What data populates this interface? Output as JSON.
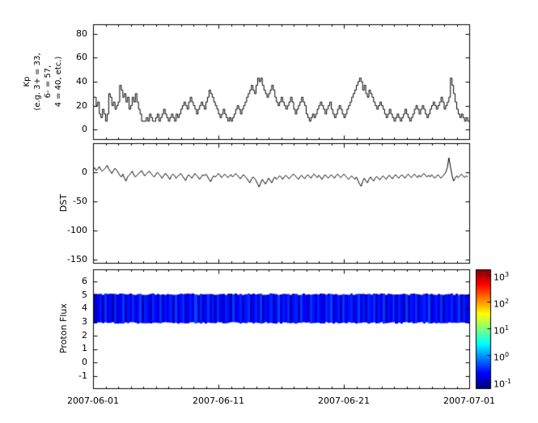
{
  "figure": {
    "background": "#ffffff",
    "axis_color": "#000000",
    "line_color": "#000000"
  },
  "x_axis": {
    "tick_labels": [
      "2007-06-01",
      "2007-06-11",
      "2007-06-21",
      "2007-07-01"
    ],
    "tick_days": [
      0,
      10,
      20,
      30
    ],
    "range_days": [
      0,
      30
    ],
    "minor_tick_step_days": 1
  },
  "colorbar": {
    "colormap": "jet",
    "log_range": [
      -1.25,
      3.2
    ],
    "ticks": [
      {
        "base": "10",
        "exp": "3"
      },
      {
        "base": "10",
        "exp": "2"
      },
      {
        "base": "10",
        "exp": "1"
      },
      {
        "base": "10",
        "exp": "0"
      },
      {
        "base": "10",
        "exp": "-1"
      }
    ]
  },
  "chart_data": [
    {
      "type": "line",
      "name": "kp-index",
      "style": "step",
      "ylabel_lines": [
        "Kp",
        "(e.g. 3+ = 33,",
        "6- = 57,",
        "4 = 40, etc.)"
      ],
      "yticks": [
        80,
        60,
        40,
        20,
        0
      ],
      "ylim": [
        -8,
        88
      ],
      "x_range_days": [
        0,
        30
      ],
      "values": [
        27,
        27,
        20,
        23,
        13,
        10,
        17,
        13,
        7,
        13,
        30,
        27,
        20,
        23,
        17,
        20,
        23,
        37,
        33,
        27,
        30,
        23,
        27,
        17,
        20,
        27,
        23,
        30,
        23,
        17,
        13,
        7,
        7,
        7,
        10,
        7,
        13,
        10,
        7,
        7,
        10,
        13,
        7,
        10,
        13,
        17,
        13,
        10,
        7,
        10,
        13,
        10,
        7,
        13,
        10,
        13,
        17,
        20,
        23,
        20,
        17,
        23,
        27,
        23,
        20,
        17,
        13,
        17,
        20,
        23,
        20,
        17,
        23,
        27,
        33,
        30,
        27,
        23,
        20,
        17,
        13,
        10,
        13,
        17,
        13,
        10,
        7,
        10,
        7,
        10,
        13,
        17,
        20,
        17,
        13,
        17,
        20,
        23,
        27,
        30,
        33,
        37,
        33,
        30,
        37,
        43,
        40,
        43,
        37,
        33,
        30,
        27,
        30,
        33,
        37,
        33,
        27,
        23,
        20,
        23,
        27,
        23,
        20,
        17,
        20,
        23,
        27,
        23,
        17,
        13,
        17,
        20,
        23,
        27,
        23,
        20,
        13,
        10,
        7,
        10,
        13,
        10,
        13,
        17,
        20,
        23,
        20,
        17,
        13,
        17,
        20,
        23,
        17,
        13,
        10,
        13,
        17,
        20,
        17,
        13,
        10,
        13,
        17,
        20,
        23,
        27,
        30,
        33,
        37,
        40,
        43,
        40,
        33,
        37,
        30,
        27,
        33,
        30,
        27,
        23,
        20,
        17,
        20,
        23,
        20,
        17,
        13,
        10,
        13,
        17,
        13,
        10,
        7,
        10,
        13,
        10,
        7,
        10,
        13,
        17,
        13,
        10,
        7,
        10,
        13,
        17,
        20,
        17,
        13,
        17,
        20,
        17,
        13,
        10,
        13,
        17,
        20,
        23,
        20,
        17,
        20,
        23,
        27,
        23,
        17,
        20,
        23,
        27,
        43,
        37,
        30,
        23,
        17,
        13,
        10,
        13,
        10,
        7,
        10,
        7
      ]
    },
    {
      "type": "line",
      "name": "dst-index",
      "style": "line",
      "ylabel": "DST",
      "yticks": [
        0,
        -50,
        -100,
        -150
      ],
      "ylim": [
        50,
        -155
      ],
      "x_range_days": [
        0,
        30
      ],
      "values": [
        5,
        8,
        3,
        6,
        10,
        4,
        2,
        5,
        8,
        12,
        6,
        2,
        -2,
        3,
        7,
        4,
        0,
        -5,
        -8,
        -3,
        -10,
        -15,
        -8,
        -5,
        -2,
        2,
        -4,
        -8,
        -5,
        -2,
        0,
        3,
        -2,
        -6,
        -3,
        0,
        2,
        -2,
        -5,
        -8,
        -4,
        0,
        -3,
        -6,
        -10,
        -6,
        -2,
        -4,
        -8,
        -12,
        -6,
        -3,
        -6,
        -10,
        -7,
        -4,
        -2,
        -6,
        -10,
        -14,
        -8,
        -4,
        -7,
        -10,
        -6,
        -2,
        -5,
        -8,
        -12,
        -8,
        -4,
        -6,
        -3,
        -7,
        -12,
        -16,
        -10,
        -6,
        -8,
        -5,
        -2,
        -5,
        -9,
        -6,
        -3,
        -6,
        -9,
        -6,
        -4,
        -8,
        -5,
        -2,
        -5,
        -8,
        -11,
        -7,
        -4,
        -7,
        -10,
        -14,
        -18,
        -12,
        -8,
        -10,
        -14,
        -20,
        -25,
        -18,
        -12,
        -16,
        -20,
        -15,
        -10,
        -14,
        -18,
        -12,
        -8,
        -12,
        -9,
        -6,
        -8,
        -12,
        -8,
        -5,
        -8,
        -11,
        -8,
        -5,
        -3,
        -6,
        -9,
        -12,
        -8,
        -5,
        -8,
        -11,
        -7,
        -4,
        -7,
        -10,
        -6,
        -3,
        -6,
        -9,
        -5,
        -8,
        -12,
        -8,
        -4,
        -7,
        -10,
        -7,
        -4,
        -7,
        -10,
        -6,
        -3,
        -6,
        -9,
        -6,
        -3,
        -6,
        -9,
        -12,
        -9,
        -6,
        -9,
        -12,
        -8,
        -14,
        -20,
        -24,
        -16,
        -10,
        -14,
        -18,
        -12,
        -8,
        -12,
        -15,
        -10,
        -7,
        -10,
        -13,
        -9,
        -6,
        -9,
        -12,
        -8,
        -5,
        -8,
        -11,
        -7,
        -4,
        -7,
        -10,
        -7,
        -4,
        -7,
        -10,
        -6,
        -3,
        -6,
        -9,
        -6,
        -3,
        -6,
        -9,
        -5,
        -8,
        -5,
        -2,
        -5,
        -8,
        -5,
        -8,
        -4,
        -7,
        -10,
        -7,
        -4,
        -7,
        -10,
        -7,
        -4,
        0,
        8,
        25,
        10,
        -5,
        -15,
        -10,
        -6,
        -9,
        -6,
        -3,
        -6,
        -9,
        -6,
        -8
      ]
    },
    {
      "type": "heatmap",
      "name": "proton-flux",
      "ylabel": "Proton Flux",
      "yticks": [
        6,
        5,
        4,
        3,
        2,
        1,
        0,
        -1
      ],
      "ylim": [
        -1.9,
        6.9
      ],
      "band": [
        3,
        5
      ],
      "scale": "log10",
      "clim_log": [
        -1.25,
        3.2
      ],
      "colormap": "jet",
      "x_range_days": [
        0,
        30
      ],
      "values": [
        0.12,
        0.18,
        0.25,
        0.1,
        0.32,
        0.15,
        0.22,
        0.09,
        0.28,
        0.14,
        0.19,
        0.35,
        0.11,
        0.24,
        0.16,
        0.3,
        0.13,
        0.21,
        0.38,
        0.1,
        0.26,
        0.17,
        0.12,
        0.29,
        0.2,
        0.15,
        0.33,
        0.11,
        0.23,
        0.18,
        0.27,
        0.1,
        0.36,
        0.14,
        0.22,
        0.31,
        0.12,
        0.19,
        0.25,
        0.16,
        0.4,
        0.13,
        0.28,
        0.11,
        0.21,
        0.34,
        0.15,
        0.24,
        0.1,
        0.3,
        0.18,
        0.12,
        0.26,
        0.22,
        0.09,
        0.37,
        0.16,
        0.2,
        0.28,
        0.13,
        0.24,
        0.32,
        0.11,
        0.19,
        0.27,
        0.15,
        0.35,
        0.1,
        0.23,
        0.17,
        0.29,
        0.12,
        0.21,
        0.39,
        0.14,
        0.25,
        0.18,
        0.31,
        0.1,
        0.22,
        0.28,
        0.13,
        0.36,
        0.16,
        0.2,
        0.11,
        0.33,
        0.24,
        0.15,
        0.27,
        0.19,
        0.12,
        0.3,
        0.22,
        0.41,
        0.14,
        0.18,
        0.26,
        0.1,
        0.34,
        0.17,
        0.23,
        0.29,
        0.13,
        0.21,
        0.38,
        0.15,
        0.25,
        0.11,
        0.28,
        0.2,
        0.32,
        0.12,
        0.24,
        0.16,
        0.35,
        0.1,
        0.22,
        0.18,
        0.3,
        0.14,
        0.27,
        0.21,
        0.09,
        0.37,
        0.13,
        0.25,
        0.19,
        0.31,
        0.11,
        0.23,
        0.28,
        0.16,
        0.4,
        0.12,
        0.2,
        0.26,
        0.15,
        0.33,
        0.1,
        0.24,
        0.18,
        0.29,
        0.13,
        0.22,
        0.36,
        0.11,
        0.27,
        0.17,
        0.21
      ]
    }
  ]
}
